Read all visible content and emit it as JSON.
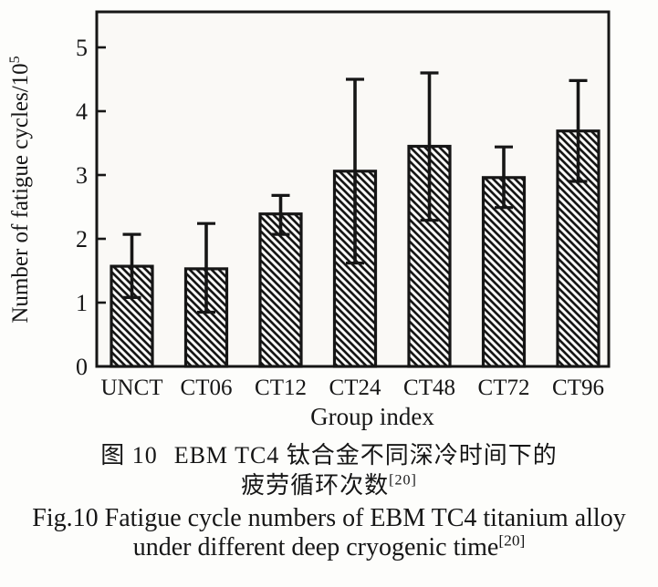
{
  "figure": {
    "caption_zh_prefix": "图 10",
    "caption_zh_line1": "EBM TC4 钛合金不同深冷时间下的",
    "caption_zh_line2": "疲劳循环次数",
    "caption_zh_sup": "[20]",
    "caption_en_line1": "Fig.10 Fatigue cycle numbers of EBM TC4 titanium alloy",
    "caption_en_line2": "under different deep cryogenic time",
    "caption_en_sup": "[20]"
  },
  "chart_data": {
    "type": "bar",
    "title": "",
    "xlabel": "Group index",
    "ylabel": "Number of fatigue cycles/10",
    "ylabel_sup": "5",
    "categories": [
      "UNCT",
      "CT06",
      "CT12",
      "CT24",
      "CT48",
      "CT72",
      "CT96"
    ],
    "values": [
      1.57,
      1.53,
      2.39,
      3.06,
      3.45,
      2.96,
      3.69
    ],
    "error_low": [
      1.08,
      0.85,
      2.07,
      1.62,
      2.29,
      2.49,
      2.9
    ],
    "error_high": [
      2.07,
      2.24,
      2.68,
      4.5,
      4.6,
      3.44,
      4.48
    ],
    "ylim": [
      0,
      5.55
    ],
    "yticks": [
      0,
      1,
      2,
      3,
      4,
      5
    ],
    "grid": false,
    "legend_position": "none",
    "bar_fill": "diagonal-hatch",
    "ink_color": "#161616",
    "plot_background": "#faf9f6"
  }
}
